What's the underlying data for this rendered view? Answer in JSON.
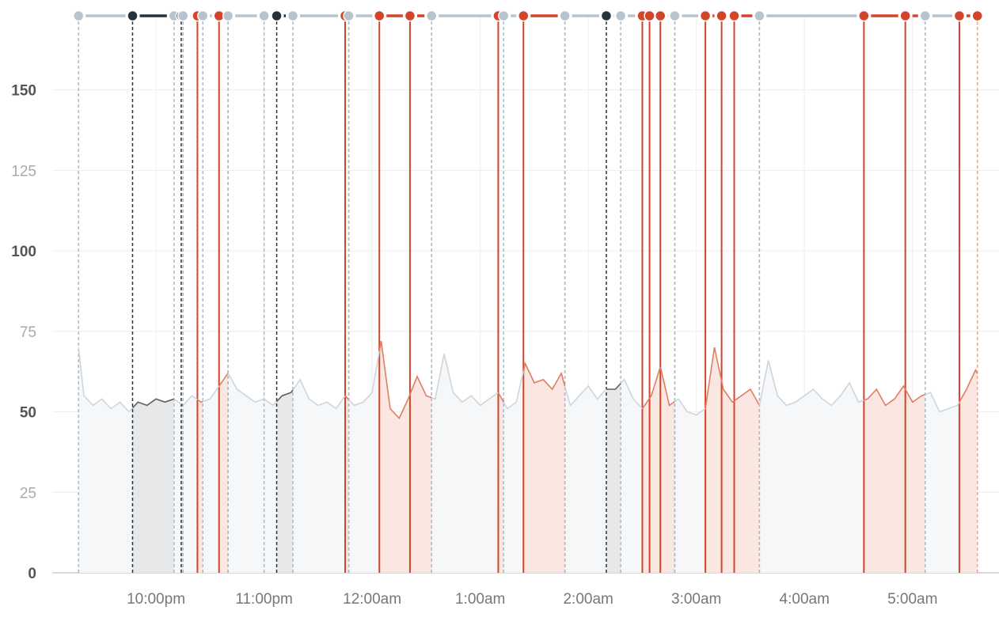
{
  "chart_data": {
    "type": "line",
    "title": "",
    "xlabel": "",
    "ylabel": "",
    "x_unit": "minutes after 10:00pm",
    "xlim": [
      -57.6,
      468
    ],
    "ylim": [
      0,
      173
    ],
    "grid": true,
    "y_ticks": [
      {
        "value": 0,
        "label": "0",
        "major": true
      },
      {
        "value": 25,
        "label": "25",
        "major": false
      },
      {
        "value": 50,
        "label": "50",
        "major": true
      },
      {
        "value": 75,
        "label": "75",
        "major": false
      },
      {
        "value": 100,
        "label": "100",
        "major": true
      },
      {
        "value": 125,
        "label": "125",
        "major": false
      },
      {
        "value": 150,
        "label": "150",
        "major": true
      }
    ],
    "x_ticks": [
      {
        "value": 0,
        "label": "10:00pm"
      },
      {
        "value": 60,
        "label": "11:00pm"
      },
      {
        "value": 120,
        "label": "12:00am"
      },
      {
        "value": 180,
        "label": "1:00am"
      },
      {
        "value": 240,
        "label": "2:00am"
      },
      {
        "value": 300,
        "label": "3:00am"
      },
      {
        "value": 360,
        "label": "4:00am"
      },
      {
        "value": 420,
        "label": "5:00am"
      }
    ],
    "series": {
      "start_min": -45,
      "step_min": 5,
      "values": [
        80,
        55,
        52,
        54,
        51,
        53,
        50,
        53,
        52,
        54,
        53,
        54,
        52,
        55,
        53,
        54,
        58,
        62,
        57,
        55,
        53,
        54,
        52,
        55,
        56,
        60,
        54,
        52,
        53,
        51,
        55,
        52,
        53,
        56,
        72,
        51,
        48,
        54,
        61,
        55,
        54,
        68,
        56,
        53,
        55,
        52,
        54,
        56,
        51,
        53,
        65,
        59,
        60,
        57,
        62,
        52,
        55,
        58,
        54,
        57,
        57,
        60,
        54,
        51,
        55,
        64,
        52,
        54,
        50,
        49,
        51,
        70,
        57,
        53,
        55,
        57,
        52,
        66,
        55,
        52,
        53,
        55,
        57,
        54,
        52,
        55,
        59,
        53,
        54,
        57,
        52,
        54,
        58,
        53,
        55,
        56,
        50,
        51,
        52,
        57,
        63,
        57
      ]
    },
    "segments": [
      {
        "type": "gray",
        "start": -43,
        "end": -13
      },
      {
        "type": "dark",
        "start": -13,
        "end": 10
      },
      {
        "type": "gray",
        "start": 10,
        "end": 14
      },
      {
        "type": "dark",
        "start": 14,
        "end": 15
      },
      {
        "type": "gray",
        "start": 15,
        "end": 23
      },
      {
        "type": "red",
        "start": 23,
        "end": 26
      },
      {
        "type": "gray",
        "start": 26,
        "end": 35
      },
      {
        "type": "red",
        "start": 35,
        "end": 40
      },
      {
        "type": "gray",
        "start": 40,
        "end": 60
      },
      {
        "type": "gray",
        "start": 60,
        "end": 67
      },
      {
        "type": "dark",
        "start": 67,
        "end": 76
      },
      {
        "type": "gray",
        "start": 76,
        "end": 105
      },
      {
        "type": "red",
        "start": 105,
        "end": 107
      },
      {
        "type": "gray",
        "start": 107,
        "end": 124
      },
      {
        "type": "red",
        "start": 124,
        "end": 141
      },
      {
        "type": "red",
        "start": 141,
        "end": 153
      },
      {
        "type": "gray",
        "start": 153,
        "end": 190
      },
      {
        "type": "red",
        "start": 190,
        "end": 193
      },
      {
        "type": "gray",
        "start": 193,
        "end": 204
      },
      {
        "type": "red",
        "start": 204,
        "end": 227
      },
      {
        "type": "gray",
        "start": 227,
        "end": 250
      },
      {
        "type": "dark",
        "start": 250,
        "end": 258
      },
      {
        "type": "gray",
        "start": 258,
        "end": 270
      },
      {
        "type": "red",
        "start": 270,
        "end": 274
      },
      {
        "type": "red",
        "start": 274,
        "end": 280
      },
      {
        "type": "red",
        "start": 280,
        "end": 288
      },
      {
        "type": "gray",
        "start": 288,
        "end": 305
      },
      {
        "type": "red",
        "start": 305,
        "end": 314
      },
      {
        "type": "red",
        "start": 314,
        "end": 321
      },
      {
        "type": "red",
        "start": 321,
        "end": 335
      },
      {
        "type": "gray",
        "start": 335,
        "end": 393
      },
      {
        "type": "red",
        "start": 393,
        "end": 416
      },
      {
        "type": "red",
        "start": 416,
        "end": 427
      },
      {
        "type": "gray",
        "start": 427,
        "end": 446
      },
      {
        "type": "red",
        "start": 446,
        "end": 456
      }
    ],
    "colors": {
      "gray": {
        "line": "#cdd6dd",
        "fill": "#f5f7f9",
        "marker": "#b7c4ce"
      },
      "dark": {
        "line": "#5a5d61",
        "fill": "#e7e8ea",
        "marker": "#26313a"
      },
      "red": {
        "line": "#e07d64",
        "fill": "#fbe7e2",
        "marker": "#d2452a"
      },
      "grid": "#eeeeee",
      "axis": "#cccccc",
      "tick_major": "#555555",
      "tick_minor": "#a9a9a9"
    }
  }
}
